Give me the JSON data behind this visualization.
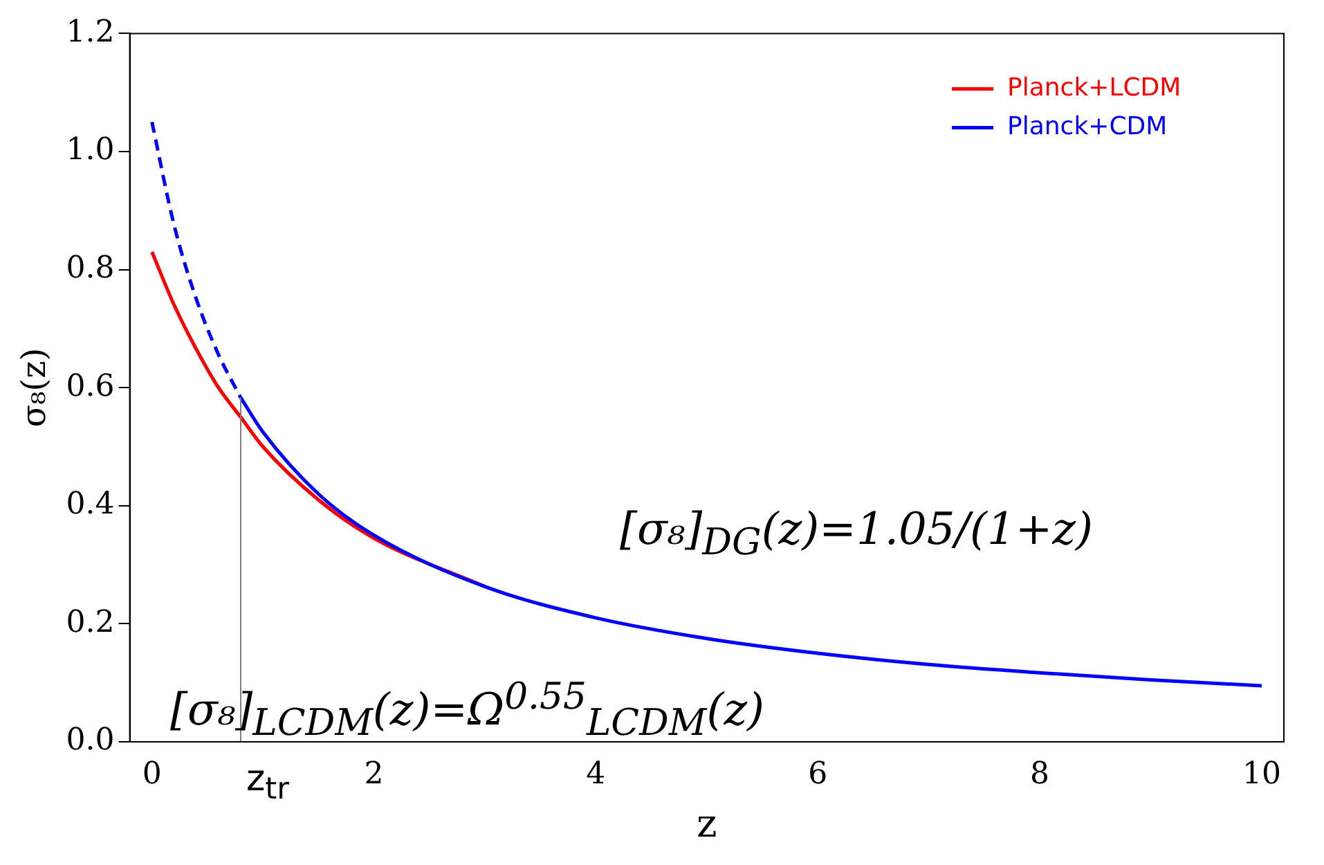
{
  "chart_data": {
    "type": "line",
    "xlabel": "z",
    "ylabel": "σ₈(z)",
    "xlim": [
      -0.2,
      10.2
    ],
    "xticks": [
      0,
      2,
      4,
      6,
      8,
      10
    ],
    "ylim": [
      0,
      1.2
    ],
    "yticks": [
      {
        "value": 0,
        "label": "0.0"
      },
      0.2,
      0.4,
      0.6,
      0.8,
      {
        "value": 1,
        "label": "1.0"
      },
      {
        "value": 1.2,
        "label": "1.2"
      }
    ],
    "series": [
      {
        "name": "Planck+LCDM",
        "color": "#ff0000",
        "x": [
          0,
          0.2,
          0.4,
          0.6,
          0.8,
          1,
          1.5,
          2,
          3
        ],
        "values": [
          0.83,
          0.74,
          0.665,
          0.6,
          0.55,
          0.5,
          0.41,
          0.345,
          0.263
        ]
      },
      {
        "color": "#0000ff",
        "line_style": "dashed",
        "x": [
          0,
          0.2,
          0.4,
          0.6,
          0.8
        ],
        "values": [
          1.05,
          0.875,
          0.75,
          0.656,
          0.583
        ]
      },
      {
        "name": "Planck+CDM",
        "color": "#0000ff",
        "x": [
          0.8,
          1,
          1.5,
          2,
          3,
          4,
          5,
          6,
          7,
          8,
          9,
          10
        ],
        "values": [
          0.583,
          0.525,
          0.42,
          0.35,
          0.263,
          0.21,
          0.175,
          0.15,
          0.131,
          0.117,
          0.105,
          0.095
        ]
      }
    ],
    "ref_lines": [
      {
        "axis": "x",
        "value": 0.8,
        "label": "z$_{tr}$",
        "color": "#808080"
      }
    ],
    "legend": "top right",
    "grid": false,
    "annotations": [
      "[σ₈]$_{DG}$(z)=1.05/(1+z)",
      "[σ₈]$_{LCDM}$(z)=Ω$^{0.55}$$_{LCDM}$(z)"
    ]
  }
}
